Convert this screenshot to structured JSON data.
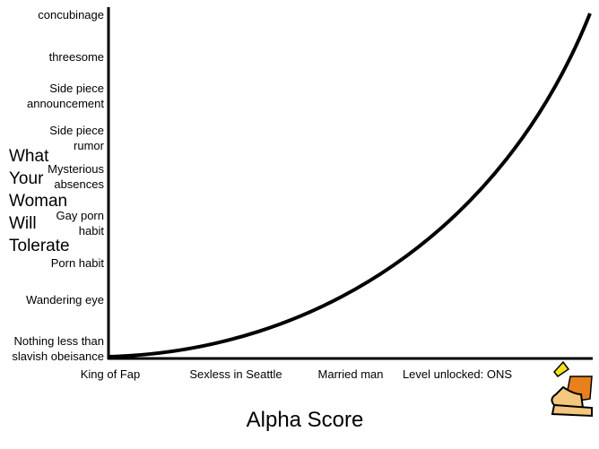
{
  "chart_data": {
    "type": "line",
    "ylabel": "What Your Woman Will Tolerate",
    "xlabel": "Alpha Score",
    "ycategories": [
      "concubinage",
      "threesome",
      "Side piece announcement",
      "Side piece rumor",
      "Mysterious absences",
      "Gay porn habit",
      "Porn habit",
      "Wandering eye",
      "Nothing less than slavish obeisance"
    ],
    "categories": [
      "King of Fap",
      "Sexless in Seattle",
      "Married man",
      "Level unlocked: ONS"
    ],
    "color": "#000000"
  }
}
